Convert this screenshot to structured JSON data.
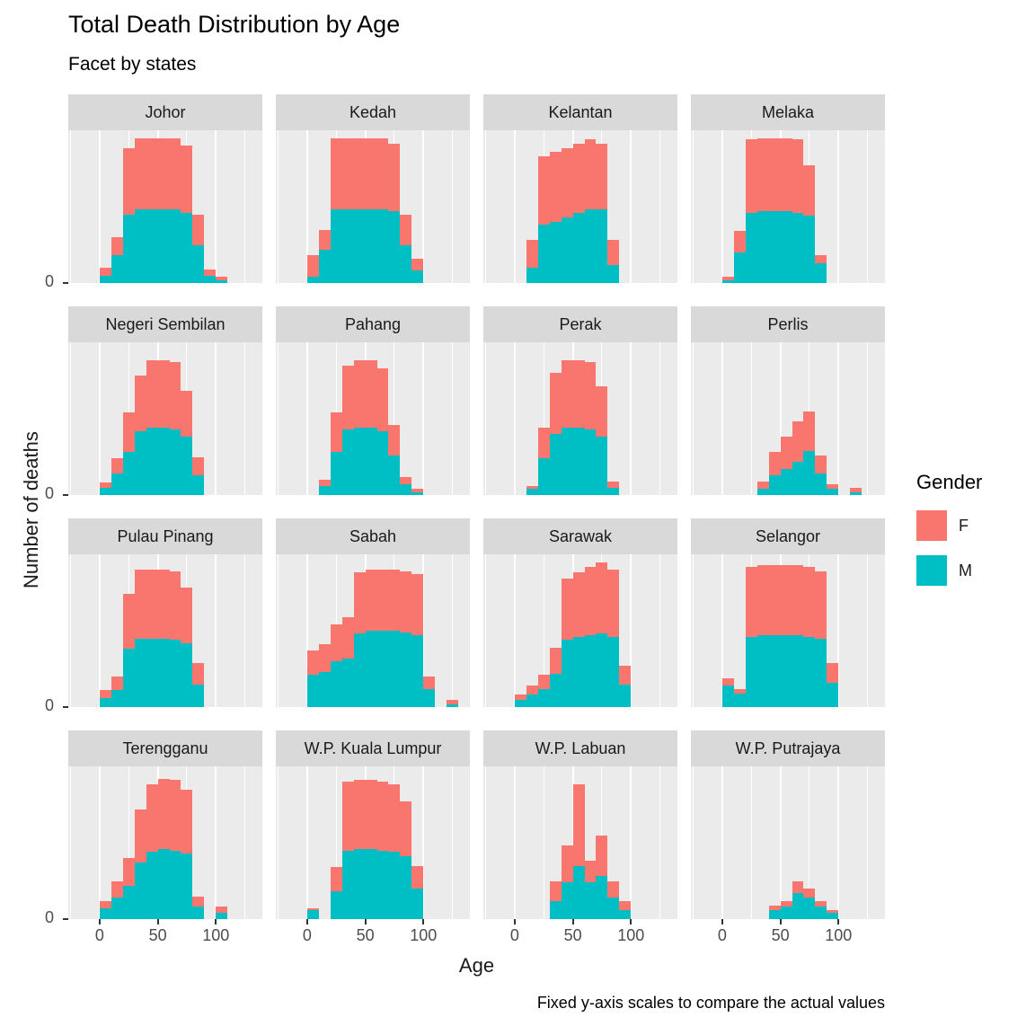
{
  "title": "Total Death Distribution by Age",
  "subtitle": "Facet by states",
  "caption": "Fixed y-axis scales to compare the actual values",
  "axes": {
    "x_label": "Age",
    "y_label": "Number of deaths",
    "x_ticks": [
      0,
      50,
      100
    ],
    "y_tick_labels": [
      "0"
    ]
  },
  "legend": {
    "title": "Gender",
    "items": [
      {
        "label": "F",
        "color": "#F8766D"
      },
      {
        "label": "M",
        "color": "#00BFC4"
      }
    ]
  },
  "style": {
    "f_color": "#F8766D",
    "m_color": "#00BFC4",
    "panel_bg": "#EBEBEB",
    "strip_bg": "#D9D9D9",
    "grid_color": "#FFFFFF"
  },
  "chart_data": {
    "type": "bar",
    "variant": "stacked-histogram-faceted",
    "title": "Total Death Distribution by Age",
    "subtitle": "Facet by states",
    "xlabel": "Age",
    "ylabel": "Number of deaths",
    "legend_title": "Gender",
    "series": [
      "M",
      "F"
    ],
    "bin_width": 10,
    "x_domain": [
      -27,
      140
    ],
    "y_domain": [
      0,
      100
    ],
    "bins_format": [
      "age_start",
      "M_value",
      "F_value"
    ],
    "facets": [
      {
        "state": "Johor",
        "bins": [
          [
            0,
            5,
            5
          ],
          [
            10,
            18,
            12
          ],
          [
            20,
            45,
            43
          ],
          [
            30,
            48,
            47
          ],
          [
            40,
            48,
            47
          ],
          [
            50,
            48,
            47
          ],
          [
            60,
            48,
            47
          ],
          [
            70,
            46,
            44
          ],
          [
            80,
            25,
            20
          ],
          [
            90,
            5,
            4
          ],
          [
            100,
            2,
            2
          ]
        ]
      },
      {
        "state": "Kedah",
        "bins": [
          [
            0,
            4,
            14
          ],
          [
            10,
            22,
            13
          ],
          [
            20,
            48,
            47
          ],
          [
            30,
            48,
            47
          ],
          [
            40,
            48,
            47
          ],
          [
            50,
            48,
            47
          ],
          [
            60,
            48,
            47
          ],
          [
            70,
            47,
            44
          ],
          [
            80,
            25,
            20
          ],
          [
            90,
            8,
            8
          ]
        ]
      },
      {
        "state": "Kelantan",
        "bins": [
          [
            10,
            10,
            18
          ],
          [
            20,
            38,
            45
          ],
          [
            30,
            40,
            46
          ],
          [
            40,
            43,
            45
          ],
          [
            50,
            46,
            45
          ],
          [
            60,
            48,
            46
          ],
          [
            70,
            48,
            43
          ],
          [
            80,
            12,
            16
          ]
        ]
      },
      {
        "state": "Melaka",
        "bins": [
          [
            0,
            2,
            2
          ],
          [
            10,
            20,
            14
          ],
          [
            20,
            46,
            48
          ],
          [
            30,
            47,
            48
          ],
          [
            40,
            47,
            48
          ],
          [
            50,
            47,
            48
          ],
          [
            60,
            46,
            48
          ],
          [
            70,
            44,
            33
          ],
          [
            80,
            13,
            5
          ]
        ]
      },
      {
        "state": "Negeri Sembilan",
        "bins": [
          [
            0,
            5,
            3
          ],
          [
            10,
            14,
            10
          ],
          [
            20,
            28,
            26
          ],
          [
            30,
            42,
            36
          ],
          [
            40,
            44,
            44
          ],
          [
            50,
            44,
            44
          ],
          [
            60,
            43,
            44
          ],
          [
            70,
            38,
            30
          ],
          [
            80,
            13,
            12
          ]
        ]
      },
      {
        "state": "Pahang",
        "bins": [
          [
            10,
            6,
            4
          ],
          [
            20,
            28,
            26
          ],
          [
            30,
            43,
            42
          ],
          [
            40,
            44,
            44
          ],
          [
            50,
            44,
            44
          ],
          [
            60,
            42,
            41
          ],
          [
            70,
            26,
            20
          ],
          [
            80,
            7,
            5
          ],
          [
            90,
            2,
            2
          ]
        ]
      },
      {
        "state": "Perak",
        "bins": [
          [
            10,
            4,
            2
          ],
          [
            20,
            24,
            20
          ],
          [
            30,
            40,
            40
          ],
          [
            40,
            44,
            44
          ],
          [
            50,
            44,
            44
          ],
          [
            60,
            43,
            44
          ],
          [
            70,
            38,
            33
          ],
          [
            80,
            5,
            4
          ]
        ]
      },
      {
        "state": "Perlis",
        "bins": [
          [
            30,
            4,
            5
          ],
          [
            40,
            13,
            15
          ],
          [
            50,
            17,
            21
          ],
          [
            60,
            22,
            26
          ],
          [
            70,
            29,
            26
          ],
          [
            80,
            14,
            12
          ],
          [
            90,
            4,
            3
          ],
          [
            110,
            2,
            3
          ]
        ]
      },
      {
        "state": "Pulau Pinang",
        "bins": [
          [
            0,
            6,
            5
          ],
          [
            10,
            11,
            9
          ],
          [
            20,
            38,
            36
          ],
          [
            30,
            45,
            45
          ],
          [
            40,
            45,
            45
          ],
          [
            50,
            45,
            45
          ],
          [
            60,
            44,
            45
          ],
          [
            70,
            42,
            36
          ],
          [
            80,
            15,
            14
          ]
        ]
      },
      {
        "state": "Sabah",
        "bins": [
          [
            0,
            21,
            16
          ],
          [
            10,
            23,
            18
          ],
          [
            20,
            30,
            24
          ],
          [
            30,
            32,
            27
          ],
          [
            40,
            48,
            40
          ],
          [
            50,
            50,
            40
          ],
          [
            60,
            50,
            40
          ],
          [
            70,
            50,
            40
          ],
          [
            80,
            49,
            40
          ],
          [
            90,
            47,
            40
          ],
          [
            100,
            12,
            8
          ],
          [
            120,
            2,
            3
          ]
        ]
      },
      {
        "state": "Sarawak",
        "bins": [
          [
            0,
            5,
            3
          ],
          [
            10,
            8,
            6
          ],
          [
            20,
            12,
            9
          ],
          [
            30,
            22,
            17
          ],
          [
            40,
            44,
            40
          ],
          [
            50,
            46,
            42
          ],
          [
            60,
            47,
            45
          ],
          [
            70,
            48,
            47
          ],
          [
            80,
            46,
            44
          ],
          [
            90,
            15,
            12
          ]
        ]
      },
      {
        "state": "Selangor",
        "bins": [
          [
            0,
            14,
            5
          ],
          [
            10,
            9,
            3
          ],
          [
            20,
            46,
            46
          ],
          [
            30,
            47,
            46
          ],
          [
            40,
            47,
            46
          ],
          [
            50,
            47,
            46
          ],
          [
            60,
            47,
            46
          ],
          [
            70,
            46,
            46
          ],
          [
            80,
            45,
            44
          ],
          [
            90,
            16,
            13
          ]
        ]
      },
      {
        "state": "Terengganu",
        "bins": [
          [
            0,
            7,
            5
          ],
          [
            10,
            14,
            11
          ],
          [
            20,
            22,
            18
          ],
          [
            30,
            37,
            35
          ],
          [
            40,
            44,
            44
          ],
          [
            50,
            46,
            46
          ],
          [
            60,
            45,
            46
          ],
          [
            70,
            43,
            42
          ],
          [
            80,
            8,
            7
          ],
          [
            100,
            4,
            4
          ]
        ]
      },
      {
        "state": "W.P. Kuala Lumpur",
        "bins": [
          [
            0,
            6,
            1
          ],
          [
            20,
            18,
            16
          ],
          [
            30,
            45,
            45
          ],
          [
            40,
            46,
            45
          ],
          [
            50,
            46,
            45
          ],
          [
            60,
            45,
            45
          ],
          [
            70,
            44,
            44
          ],
          [
            80,
            41,
            36
          ],
          [
            90,
            20,
            15
          ]
        ]
      },
      {
        "state": "W.P. Labuan",
        "bins": [
          [
            30,
            12,
            13
          ],
          [
            40,
            24,
            24
          ],
          [
            50,
            35,
            53
          ],
          [
            60,
            24,
            14
          ],
          [
            70,
            28,
            27
          ],
          [
            80,
            14,
            11
          ],
          [
            90,
            6,
            6
          ]
        ]
      },
      {
        "state": "W.P. Putrajaya",
        "bins": [
          [
            40,
            6,
            3
          ],
          [
            50,
            8,
            4
          ],
          [
            60,
            17,
            8
          ],
          [
            70,
            14,
            6
          ],
          [
            80,
            8,
            4
          ],
          [
            90,
            4,
            2
          ]
        ]
      }
    ]
  }
}
